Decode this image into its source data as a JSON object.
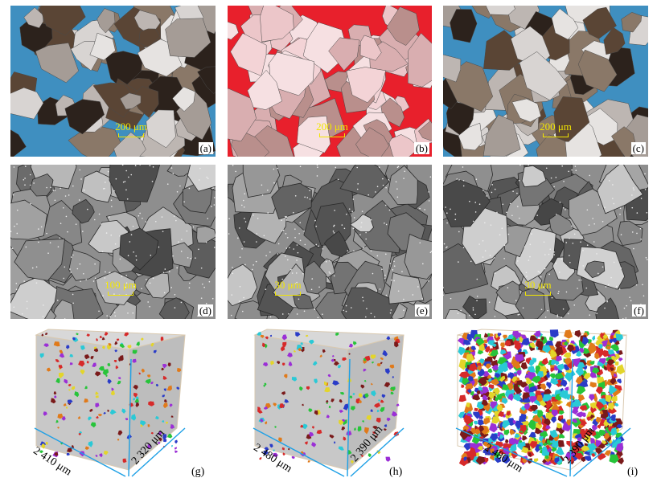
{
  "panels": [
    {
      "id": "a",
      "label": "(a)",
      "scale": "200 μm",
      "kind": "thin",
      "bg": "#9a918b",
      "pore": "#3f8fc0"
    },
    {
      "id": "b",
      "label": "(b)",
      "scale": "200 μm",
      "kind": "thin",
      "bg": "#e9c3c6",
      "pore": "#e8202c"
    },
    {
      "id": "c",
      "label": "(c)",
      "scale": "200 μm",
      "kind": "thin",
      "bg": "#a09a96",
      "pore": "#3f8fc0"
    },
    {
      "id": "d",
      "label": "(d)",
      "scale": "100 μm",
      "kind": "sem"
    },
    {
      "id": "e",
      "label": "(e)",
      "scale": "30 μm",
      "kind": "sem"
    },
    {
      "id": "f",
      "label": "(f)",
      "scale": "30 μm",
      "kind": "sem"
    }
  ],
  "cubes": [
    {
      "id": "g",
      "label": "(g)",
      "dim_front": "2 410 μm",
      "dim_side": "2 320 μm",
      "density": "sparse"
    },
    {
      "id": "h",
      "label": "(h)",
      "dim_front": "2 480 μm",
      "dim_side": "2 390 μm",
      "density": "sparse"
    },
    {
      "id": "i",
      "label": "(i)",
      "dim_front": "2 480 μm",
      "dim_side": "2 390 μm",
      "density": "dense"
    }
  ],
  "colors": {
    "scale_bar": "#f2e600",
    "dimension_line": "#1ea0e6"
  }
}
